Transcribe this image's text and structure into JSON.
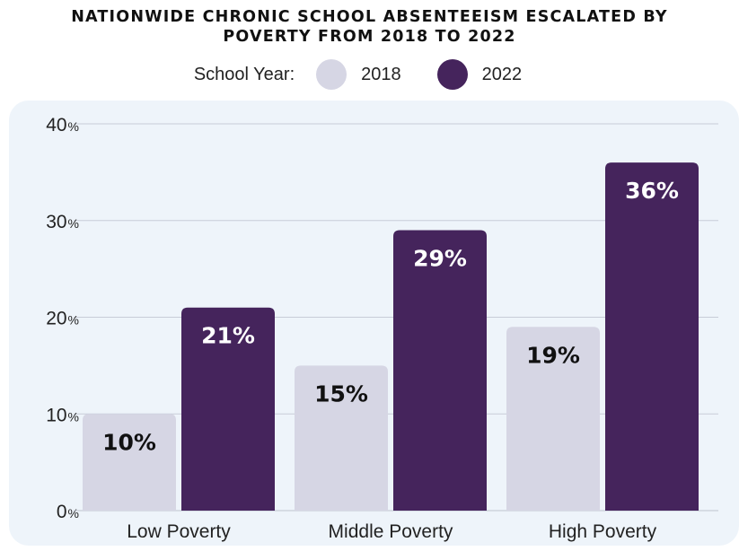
{
  "chart_data": {
    "type": "bar",
    "title_lines": [
      "NATIONWIDE CHRONIC SCHOOL ABSENTEEISM ESCALATED BY",
      "POVERTY FROM 2018 TO 2022"
    ],
    "legend_label": "School Year:",
    "categories": [
      "Low Poverty",
      "Middle Poverty",
      "High Poverty"
    ],
    "series": [
      {
        "name": "2018",
        "values": [
          10,
          15,
          19
        ],
        "color": "#d6d6e4",
        "label_color": "#111111"
      },
      {
        "name": "2022",
        "values": [
          21,
          29,
          36
        ],
        "color": "#45245c",
        "label_color": "#ffffff"
      }
    ],
    "ylim": [
      0,
      40
    ],
    "yticks": [
      0,
      10,
      20,
      30,
      40
    ],
    "ytick_suffix": "%",
    "data_label_suffix": "%",
    "grid": true,
    "legend_position": "top-center",
    "panel_color": "#eef4fa",
    "grid_color": "#c8ccd8"
  }
}
